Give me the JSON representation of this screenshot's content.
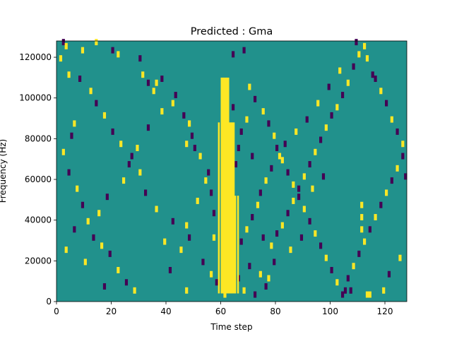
{
  "chart_data": {
    "type": "heatmap",
    "title": "Predicted : Gma",
    "xlabel": "Time step",
    "ylabel": "Frequency (Hz)",
    "xlim": [
      0,
      128
    ],
    "ylim": [
      0,
      128000
    ],
    "x_ticks": [
      0,
      20,
      40,
      60,
      80,
      100,
      120
    ],
    "y_ticks": [
      0,
      20000,
      40000,
      60000,
      80000,
      100000,
      120000
    ],
    "colorscale": {
      "low": "#440154",
      "mid": "#21918c",
      "high": "#fde725"
    },
    "background_value": "mid",
    "grid": "off",
    "bin_height_hz": 2000,
    "cells_note": "Each cell: [time_step, freq_bin_start_hz, value] where value is 'low' (purple) or 'high' (yellow); all other cells are 'mid' (teal).",
    "high_band": {
      "time_steps": [
        59,
        66
      ],
      "freq_range_hz": [
        4000,
        110000
      ]
    },
    "cells": [
      [
        2,
        126000,
        "low"
      ],
      [
        3,
        124000,
        "high"
      ],
      [
        1,
        118000,
        "high"
      ],
      [
        4,
        110000,
        "high"
      ],
      [
        9,
        122000,
        "high"
      ],
      [
        14,
        126000,
        "high"
      ],
      [
        20,
        122000,
        "low"
      ],
      [
        22,
        120000,
        "high"
      ],
      [
        30,
        118000,
        "low"
      ],
      [
        31,
        110000,
        "high"
      ],
      [
        33,
        106000,
        "low"
      ],
      [
        35,
        102000,
        "high"
      ],
      [
        36,
        106000,
        "high"
      ],
      [
        38,
        108000,
        "low"
      ],
      [
        42,
        96000,
        "high"
      ],
      [
        46,
        90000,
        "low"
      ],
      [
        48,
        86000,
        "high"
      ],
      [
        49,
        80000,
        "low"
      ],
      [
        47,
        76000,
        "high"
      ],
      [
        50,
        74000,
        "low"
      ],
      [
        52,
        70000,
        "high"
      ],
      [
        55,
        62000,
        "low"
      ],
      [
        54,
        58000,
        "high"
      ],
      [
        56,
        52000,
        "low"
      ],
      [
        51,
        48000,
        "high"
      ],
      [
        57,
        42000,
        "low"
      ],
      [
        47,
        36000,
        "high"
      ],
      [
        48,
        30000,
        "low"
      ],
      [
        45,
        24000,
        "high"
      ],
      [
        53,
        18000,
        "low"
      ],
      [
        56,
        12000,
        "high"
      ],
      [
        47,
        4000,
        "high"
      ],
      [
        41,
        14000,
        "low"
      ],
      [
        39,
        28000,
        "high"
      ],
      [
        42,
        38000,
        "low"
      ],
      [
        36,
        44000,
        "high"
      ],
      [
        32,
        52000,
        "low"
      ],
      [
        30,
        62000,
        "high"
      ],
      [
        27,
        70000,
        "low"
      ],
      [
        23,
        76000,
        "high"
      ],
      [
        20,
        82000,
        "low"
      ],
      [
        17,
        90000,
        "high"
      ],
      [
        14,
        96000,
        "low"
      ],
      [
        12,
        102000,
        "high"
      ],
      [
        8,
        108000,
        "low"
      ],
      [
        6,
        86000,
        "high"
      ],
      [
        5,
        80000,
        "low"
      ],
      [
        2,
        72000,
        "high"
      ],
      [
        4,
        62000,
        "low"
      ],
      [
        7,
        54000,
        "high"
      ],
      [
        9,
        46000,
        "low"
      ],
      [
        11,
        38000,
        "high"
      ],
      [
        13,
        30000,
        "low"
      ],
      [
        16,
        26000,
        "high"
      ],
      [
        19,
        22000,
        "low"
      ],
      [
        22,
        14000,
        "high"
      ],
      [
        25,
        8000,
        "low"
      ],
      [
        28,
        4000,
        "high"
      ],
      [
        17,
        6000,
        "low"
      ],
      [
        10,
        18000,
        "high"
      ],
      [
        3,
        24000,
        "high"
      ],
      [
        6,
        34000,
        "low"
      ],
      [
        15,
        42000,
        "high"
      ],
      [
        18,
        50000,
        "low"
      ],
      [
        24,
        58000,
        "high"
      ],
      [
        26,
        66000,
        "low"
      ],
      [
        29,
        74000,
        "high"
      ],
      [
        33,
        84000,
        "low"
      ],
      [
        38,
        92000,
        "high"
      ],
      [
        43,
        100000,
        "low"
      ],
      [
        68,
        122000,
        "low"
      ],
      [
        70,
        104000,
        "high"
      ],
      [
        72,
        98000,
        "low"
      ],
      [
        75,
        92000,
        "high"
      ],
      [
        77,
        86000,
        "low"
      ],
      [
        79,
        80000,
        "high"
      ],
      [
        80,
        74000,
        "low"
      ],
      [
        82,
        68000,
        "high"
      ],
      [
        84,
        62000,
        "low"
      ],
      [
        86,
        56000,
        "high"
      ],
      [
        88,
        50000,
        "low"
      ],
      [
        90,
        44000,
        "high"
      ],
      [
        92,
        38000,
        "low"
      ],
      [
        94,
        32000,
        "high"
      ],
      [
        96,
        26000,
        "low"
      ],
      [
        98,
        20000,
        "high"
      ],
      [
        100,
        14000,
        "low"
      ],
      [
        102,
        8000,
        "high"
      ],
      [
        104,
        2000,
        "low"
      ],
      [
        106,
        10000,
        "low"
      ],
      [
        108,
        16000,
        "high"
      ],
      [
        110,
        22000,
        "low"
      ],
      [
        112,
        28000,
        "high"
      ],
      [
        114,
        34000,
        "low"
      ],
      [
        116,
        40000,
        "high"
      ],
      [
        118,
        46000,
        "low"
      ],
      [
        120,
        52000,
        "high"
      ],
      [
        122,
        58000,
        "low"
      ],
      [
        124,
        64000,
        "high"
      ],
      [
        126,
        70000,
        "low"
      ],
      [
        127,
        60000,
        "low"
      ],
      [
        125,
        20000,
        "high"
      ],
      [
        121,
        12000,
        "low"
      ],
      [
        119,
        4000,
        "high"
      ],
      [
        115,
        110000,
        "low"
      ],
      [
        113,
        118000,
        "high"
      ],
      [
        109,
        126000,
        "low"
      ],
      [
        103,
        112000,
        "high"
      ],
      [
        99,
        104000,
        "low"
      ],
      [
        95,
        96000,
        "high"
      ],
      [
        91,
        88000,
        "low"
      ],
      [
        87,
        82000,
        "high"
      ],
      [
        83,
        76000,
        "low"
      ],
      [
        81,
        70000,
        "high"
      ],
      [
        78,
        64000,
        "low"
      ],
      [
        76,
        58000,
        "high"
      ],
      [
        74,
        52000,
        "low"
      ],
      [
        73,
        46000,
        "high"
      ],
      [
        71,
        40000,
        "low"
      ],
      [
        69,
        34000,
        "high"
      ],
      [
        67,
        28000,
        "low"
      ],
      [
        66,
        10000,
        "low"
      ],
      [
        68,
        4000,
        "high"
      ],
      [
        70,
        16000,
        "low"
      ],
      [
        72,
        2000,
        "low"
      ],
      [
        74,
        12000,
        "high"
      ],
      [
        76,
        6000,
        "low"
      ],
      [
        78,
        26000,
        "high"
      ],
      [
        80,
        32000,
        "low"
      ],
      [
        82,
        36000,
        "high"
      ],
      [
        84,
        42000,
        "low"
      ],
      [
        86,
        48000,
        "high"
      ],
      [
        88,
        54000,
        "low"
      ],
      [
        90,
        60000,
        "high"
      ],
      [
        92,
        66000,
        "low"
      ],
      [
        94,
        72000,
        "high"
      ],
      [
        96,
        78000,
        "low"
      ],
      [
        98,
        84000,
        "high"
      ],
      [
        100,
        90000,
        "low"
      ],
      [
        102,
        94000,
        "high"
      ],
      [
        104,
        100000,
        "low"
      ],
      [
        106,
        106000,
        "high"
      ],
      [
        108,
        114000,
        "low"
      ],
      [
        110,
        120000,
        "high"
      ],
      [
        112,
        124000,
        "high"
      ],
      [
        116,
        108000,
        "low"
      ],
      [
        118,
        102000,
        "high"
      ],
      [
        120,
        96000,
        "low"
      ],
      [
        122,
        88000,
        "high"
      ],
      [
        124,
        82000,
        "low"
      ],
      [
        126,
        76000,
        "high"
      ],
      [
        97,
        60000,
        "low"
      ],
      [
        93,
        54000,
        "high"
      ],
      [
        89,
        30000,
        "low"
      ],
      [
        85,
        24000,
        "high"
      ],
      [
        79,
        18000,
        "low"
      ],
      [
        77,
        10000,
        "high"
      ],
      [
        75,
        30000,
        "low"
      ],
      [
        64,
        120000,
        "low"
      ],
      [
        61,
        2000,
        "high"
      ],
      [
        58,
        8000,
        "low"
      ],
      [
        57,
        30000,
        "high"
      ],
      [
        63,
        46000,
        "low"
      ],
      [
        65,
        66000,
        "low"
      ],
      [
        66,
        74000,
        "low"
      ],
      [
        67,
        82000,
        "low"
      ],
      [
        64,
        94000,
        "low"
      ],
      [
        62,
        104000,
        "low"
      ],
      [
        69,
        88000,
        "high"
      ],
      [
        71,
        70000,
        "low"
      ],
      [
        111,
        34000,
        "high"
      ],
      [
        111,
        40000,
        "high"
      ],
      [
        111,
        46000,
        "high"
      ],
      [
        105,
        4000,
        "low"
      ],
      [
        107,
        4000,
        "low"
      ],
      [
        113,
        2000,
        "high"
      ],
      [
        114,
        2000,
        "high"
      ]
    ]
  }
}
